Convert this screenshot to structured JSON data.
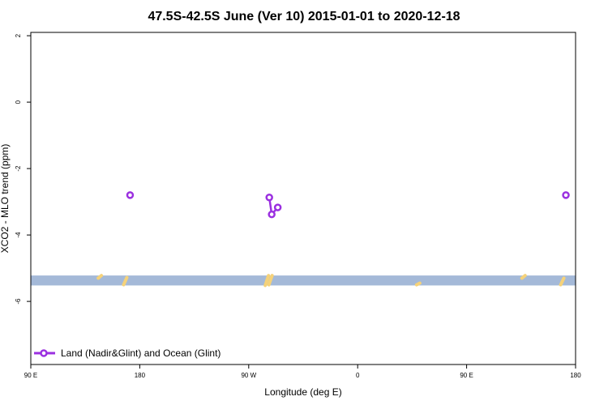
{
  "chart_data": {
    "type": "line",
    "title": "47.5S-42.5S June (Ver 10)   2015-01-01 to 2020-12-18",
    "xlabel": "Longitude (deg E)",
    "ylabel": "XCO2 - MLO trend (ppm)",
    "xlim": [
      90,
      540
    ],
    "ylim": [
      -7.9,
      2.1
    ],
    "x_ticks": [
      {
        "value": 90,
        "label": "90 E"
      },
      {
        "value": 180,
        "label": "180"
      },
      {
        "value": 270,
        "label": "90 W"
      },
      {
        "value": 360,
        "label": "0"
      },
      {
        "value": 450,
        "label": "90 E"
      },
      {
        "value": 540,
        "label": "180"
      }
    ],
    "y_ticks": [
      {
        "value": 2,
        "label": "2"
      },
      {
        "value": 0,
        "label": "0"
      },
      {
        "value": -2,
        "label": "-2"
      },
      {
        "value": -4,
        "label": "-4"
      },
      {
        "value": -6,
        "label": "-6"
      }
    ],
    "series": [
      {
        "name": "Land (Nadir&Glint) and Ocean (Glint)",
        "color": "#9b30e0",
        "segments": [
          [
            {
              "x": 172,
              "y": -2.8
            }
          ],
          [
            {
              "x": 287,
              "y": -2.87
            },
            {
              "x": 289,
              "y": -3.38
            },
            {
              "x": 294,
              "y": -3.17
            }
          ],
          [
            {
              "x": 532,
              "y": -2.8
            }
          ]
        ]
      }
    ],
    "background_map": {
      "ocean_band_y": [
        -5.52,
        -5.22
      ],
      "ocean_color": "#a4b9d8",
      "land_color": "#f5d27a",
      "land_slivers": [
        {
          "x": 147,
          "y0": -5.22,
          "y1": -5.3
        },
        {
          "x": 168,
          "y0": -5.28,
          "y1": -5.5
        },
        {
          "x": 285,
          "y0": -5.22,
          "y1": -5.52
        },
        {
          "x": 288,
          "y0": -5.22,
          "y1": -5.5
        },
        {
          "x": 410,
          "y0": -5.45,
          "y1": -5.5
        },
        {
          "x": 497,
          "y0": -5.22,
          "y1": -5.3
        },
        {
          "x": 529,
          "y0": -5.3,
          "y1": -5.5
        }
      ]
    },
    "legend": {
      "position": "bottom-left"
    },
    "grid": false
  }
}
